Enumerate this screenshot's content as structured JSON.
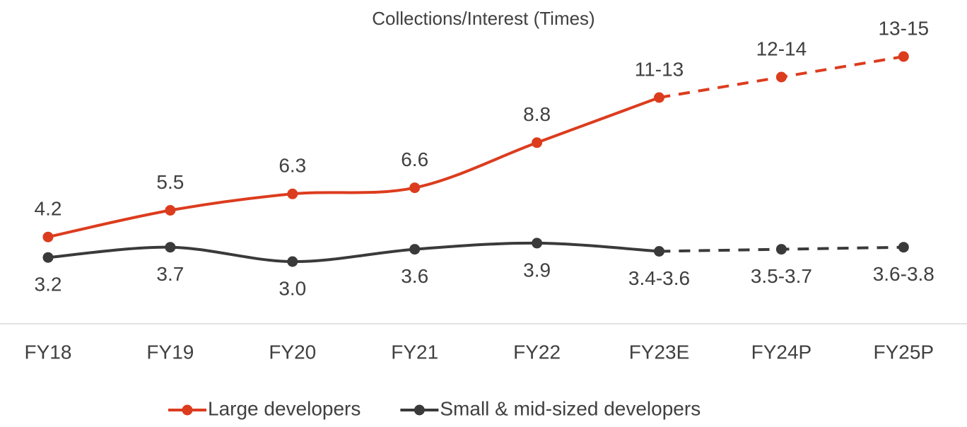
{
  "chart_data": {
    "type": "line",
    "title": "Collections/Interest (Times)",
    "categories": [
      "FY18",
      "FY19",
      "FY20",
      "FY21",
      "FY22",
      "FY23E",
      "FY24P",
      "FY25P"
    ],
    "series": [
      {
        "name": "Large developers",
        "color": "#dc3c1e",
        "values": [
          4.2,
          5.5,
          6.3,
          6.6,
          8.8,
          11,
          12,
          13
        ],
        "value_labels": [
          "4.2",
          "5.5",
          "6.3",
          "6.6",
          "8.8",
          "11-13",
          "12-14",
          "13-15"
        ]
      },
      {
        "name": "Small & mid-sized developers",
        "color": "#3a3a3a",
        "values": [
          3.2,
          3.7,
          3.0,
          3.6,
          3.9,
          3.5,
          3.6,
          3.7
        ],
        "value_labels": [
          "3.2",
          "3.7",
          "3.0",
          "3.6",
          "3.9",
          "3.4-3.6",
          "3.5-3.7",
          "3.6-3.8"
        ]
      }
    ],
    "legend": "bottom"
  }
}
